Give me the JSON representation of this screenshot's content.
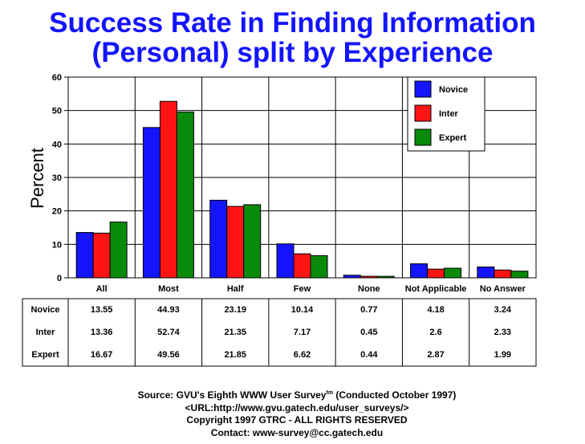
{
  "chart_data": {
    "type": "bar",
    "title_line1": "Success Rate in Finding Information",
    "title_line2": "(Personal) split by Experience",
    "ylabel": "Percent",
    "xlabel": "",
    "ylim": [
      0,
      60
    ],
    "yticks": [
      0,
      10,
      20,
      30,
      40,
      50,
      60
    ],
    "grid": true,
    "legend_position": "top-right",
    "categories": [
      "All",
      "Most",
      "Half",
      "Few",
      "None",
      "Not Applicable",
      "No Answer"
    ],
    "series": [
      {
        "name": "Novice",
        "color": "#1414ff",
        "values": [
          13.55,
          44.93,
          23.19,
          10.14,
          0.77,
          4.18,
          3.24
        ]
      },
      {
        "name": "Inter",
        "color": "#ff1414",
        "values": [
          13.36,
          52.74,
          21.35,
          7.17,
          0.45,
          2.6,
          2.33
        ]
      },
      {
        "name": "Expert",
        "color": "#0a8a0a",
        "values": [
          16.67,
          49.56,
          21.85,
          6.62,
          0.44,
          2.87,
          1.99
        ]
      }
    ],
    "table": [
      {
        "label": "Novice",
        "values": [
          "13.55",
          "44.93",
          "23.19",
          "10.14",
          "0.77",
          "4.18",
          "3.24"
        ]
      },
      {
        "label": "Inter",
        "values": [
          "13.36",
          "52.74",
          "21.35",
          "7.17",
          "0.45",
          "2.6",
          "2.33"
        ]
      },
      {
        "label": "Expert",
        "values": [
          "16.67",
          "49.56",
          "21.85",
          "6.62",
          "0.44",
          "2.87",
          "1.99"
        ]
      }
    ]
  },
  "footer": {
    "source_prefix": "Source: GVU's Eighth WWW User Survey",
    "source_sup": "tm",
    "source_suffix": " (Conducted October 1997)",
    "url": "<URL:http://www.gvu.gatech.edu/user_surveys/>",
    "copyright": "Copyright 1997 GTRC - ALL RIGHTS RESERVED",
    "contact": "Contact: www-survey@cc.gatech.edu"
  }
}
